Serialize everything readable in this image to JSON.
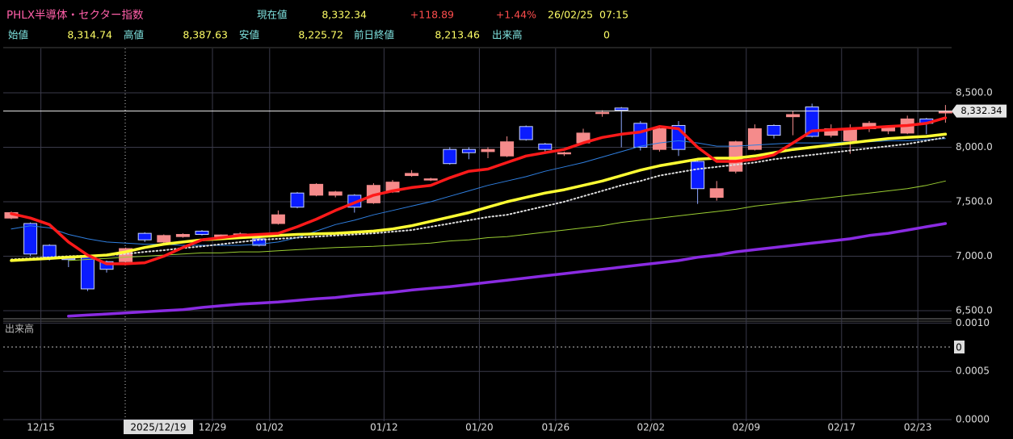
{
  "header": {
    "title": "PHLX半導体・セクター指数",
    "current_label": "現在値",
    "current": "8,332.34",
    "change": "+118.89",
    "change_pct": "+1.44%",
    "date": "26/02/25",
    "time": "07:15",
    "open_label": "始値",
    "open": "8,314.74",
    "high_label": "高値",
    "high": "8,387.63",
    "low_label": "安値",
    "low": "8,225.72",
    "prev_label": "前日終値",
    "prev": "8,213.46",
    "volume_label": "出来高",
    "volume": "0"
  },
  "chart_data": [
    {
      "type": "candlestick",
      "categories": [
        null,
        "12/15",
        null,
        null,
        null,
        null,
        null,
        null,
        null,
        null,
        "12/29",
        null,
        null,
        "01/02",
        null,
        null,
        null,
        null,
        null,
        "01/12",
        null,
        null,
        null,
        null,
        "01/20",
        null,
        null,
        null,
        "01/26",
        null,
        null,
        null,
        null,
        "02/02",
        null,
        null,
        null,
        null,
        "02/09",
        null,
        null,
        null,
        null,
        "02/17",
        null,
        null,
        null,
        "02/23",
        null,
        null
      ],
      "open": [
        7350,
        7300,
        7100,
        6980,
        7000,
        6950,
        6950,
        7210,
        7130,
        7180,
        7230,
        7180,
        7190,
        7160,
        7300,
        7580,
        7560,
        7560,
        7560,
        7490,
        7590,
        7740,
        7700,
        7980,
        7980,
        7960,
        7920,
        8190,
        8030,
        7940,
        8040,
        8310,
        8360,
        8220,
        7980,
        8200,
        7870,
        7540,
        7780,
        7980,
        8200,
        8280,
        8370,
        8110,
        8060,
        8170,
        8150,
        8130,
        8260,
        8314.74
      ],
      "high": [
        7410,
        7310,
        7110,
        7000,
        7010,
        6960,
        7080,
        7220,
        7200,
        7210,
        7240,
        7200,
        7220,
        7170,
        7420,
        7590,
        7670,
        7600,
        7570,
        7670,
        7700,
        7790,
        7720,
        8000,
        8000,
        8000,
        8100,
        8200,
        8040,
        7960,
        8170,
        8340,
        8370,
        8240,
        8200,
        8240,
        7880,
        7690,
        8060,
        8210,
        8210,
        8330,
        8400,
        8210,
        8210,
        8240,
        8200,
        8290,
        8270,
        8387.63
      ],
      "low": [
        7340,
        7000,
        6960,
        6900,
        6680,
        6850,
        6930,
        7130,
        7120,
        7170,
        7190,
        7170,
        7180,
        7090,
        7290,
        7440,
        7550,
        7540,
        7400,
        7480,
        7580,
        7730,
        7690,
        7840,
        7890,
        7900,
        7910,
        8060,
        7960,
        7920,
        8030,
        8280,
        8000,
        7970,
        7960,
        7920,
        7480,
        7510,
        7760,
        7970,
        8080,
        8110,
        8090,
        8090,
        7940,
        8140,
        8120,
        8120,
        8120,
        8225.72
      ],
      "close": [
        7400,
        7020,
        6990,
        6970,
        6700,
        6880,
        7070,
        7150,
        7190,
        7200,
        7200,
        7195,
        7205,
        7100,
        7380,
        7450,
        7660,
        7590,
        7450,
        7650,
        7680,
        7760,
        7710,
        7850,
        7950,
        7980,
        8050,
        8070,
        7980,
        7950,
        8130,
        8320,
        8340,
        8000,
        8170,
        7980,
        7620,
        7620,
        8050,
        8170,
        8110,
        8300,
        8100,
        8170,
        8170,
        8220,
        8180,
        8260,
        8220,
        8332.34
      ],
      "up_color": "#f58b8b",
      "down_color": "#0a1cff",
      "lines": [
        {
          "color": "#2f7fe0",
          "style": "thin",
          "values": [
            7250,
            7280,
            7260,
            7200,
            7160,
            7130,
            7120,
            7110,
            7110,
            7100,
            7100,
            7100,
            7100,
            7110,
            7130,
            7170,
            7230,
            7290,
            7330,
            7380,
            7420,
            7460,
            7500,
            7550,
            7600,
            7650,
            7690,
            7730,
            7780,
            7820,
            7860,
            7910,
            7960,
            8010,
            8040,
            8060,
            8040,
            8010,
            8010,
            8020,
            8030,
            8040,
            8040,
            8040,
            8050,
            8050,
            8060,
            8060,
            8070,
            8080
          ]
        },
        {
          "color": "#9acd32",
          "style": "thin",
          "values": [
            null,
            null,
            null,
            6960,
            6970,
            6980,
            6990,
            7000,
            7010,
            7020,
            7030,
            7030,
            7040,
            7040,
            7050,
            7060,
            7070,
            7080,
            7085,
            7090,
            7100,
            7110,
            7120,
            7140,
            7150,
            7170,
            7180,
            7200,
            7220,
            7240,
            7260,
            7280,
            7310,
            7330,
            7350,
            7370,
            7390,
            7410,
            7430,
            7460,
            7480,
            7500,
            7520,
            7540,
            7560,
            7580,
            7600,
            7620,
            7650,
            7690
          ]
        },
        {
          "color": "#8a2be2",
          "style": "thick",
          "values": [
            null,
            null,
            null,
            6450,
            6460,
            6470,
            6480,
            6490,
            6500,
            6510,
            6530,
            6545,
            6560,
            6570,
            6580,
            6595,
            6610,
            6620,
            6640,
            6655,
            6670,
            6690,
            6705,
            6720,
            6740,
            6760,
            6780,
            6800,
            6820,
            6840,
            6860,
            6880,
            6900,
            6920,
            6940,
            6960,
            6990,
            7010,
            7040,
            7060,
            7080,
            7100,
            7120,
            7140,
            7160,
            7190,
            7210,
            7240,
            7270,
            7300
          ]
        },
        {
          "color": "#dddddd",
          "style": "dotted",
          "values": [
            6970,
            6980,
            6990,
            7000,
            7005,
            7010,
            7020,
            7040,
            7055,
            7075,
            7090,
            7110,
            7130,
            7150,
            7160,
            7170,
            7180,
            7190,
            7200,
            7210,
            7225,
            7240,
            7270,
            7300,
            7330,
            7360,
            7380,
            7420,
            7460,
            7500,
            7550,
            7600,
            7650,
            7690,
            7740,
            7770,
            7800,
            7820,
            7840,
            7860,
            7890,
            7910,
            7930,
            7950,
            7970,
            7990,
            8010,
            8030,
            8060,
            8090
          ]
        },
        {
          "color": "#ffff33",
          "style": "thick",
          "values": [
            6960,
            6970,
            6980,
            6990,
            7000,
            7010,
            7040,
            7080,
            7110,
            7130,
            7150,
            7160,
            7170,
            7180,
            7190,
            7200,
            7205,
            7210,
            7220,
            7230,
            7250,
            7280,
            7320,
            7360,
            7400,
            7450,
            7500,
            7540,
            7580,
            7610,
            7650,
            7690,
            7740,
            7790,
            7830,
            7860,
            7890,
            7900,
            7900,
            7920,
            7950,
            7980,
            8000,
            8020,
            8040,
            8060,
            8080,
            8090,
            8100,
            8120
          ]
        },
        {
          "color": "#ff1a1a",
          "style": "thick",
          "values": [
            7390,
            7350,
            7290,
            7130,
            7010,
            6930,
            6930,
            6940,
            7000,
            7080,
            7150,
            7170,
            7190,
            7200,
            7210,
            7270,
            7340,
            7420,
            7490,
            7560,
            7600,
            7630,
            7650,
            7720,
            7780,
            7800,
            7860,
            7920,
            7950,
            7980,
            8040,
            8090,
            8120,
            8140,
            8190,
            8170,
            8000,
            7870,
            7870,
            7890,
            7930,
            8040,
            8150,
            8160,
            8170,
            8180,
            8190,
            8200,
            8220,
            8270
          ]
        }
      ],
      "ylim": [
        6426,
        8907
      ],
      "yticks": [
        {
          "value": 6500,
          "label": "6,500.0"
        },
        {
          "value": 7000,
          "label": "7,000.0"
        },
        {
          "value": 7500,
          "label": "7,500.0"
        },
        {
          "value": 8000,
          "label": "8,000.0"
        },
        {
          "value": 8500,
          "label": "8,500.0"
        }
      ],
      "grid": true,
      "last_price": {
        "value": 8332.34,
        "label": "8,332.34"
      },
      "crosshair_label": "2025/12/19"
    },
    {
      "type": "bar",
      "title": "出来高",
      "ylim": [
        0,
        0.00102
      ],
      "yticks": [
        {
          "value": 0,
          "label": "0.0000"
        },
        {
          "value": 0.0005,
          "label": "0.0005"
        },
        {
          "value": 0.001,
          "label": "0.0010"
        }
      ],
      "grid": true
    }
  ]
}
